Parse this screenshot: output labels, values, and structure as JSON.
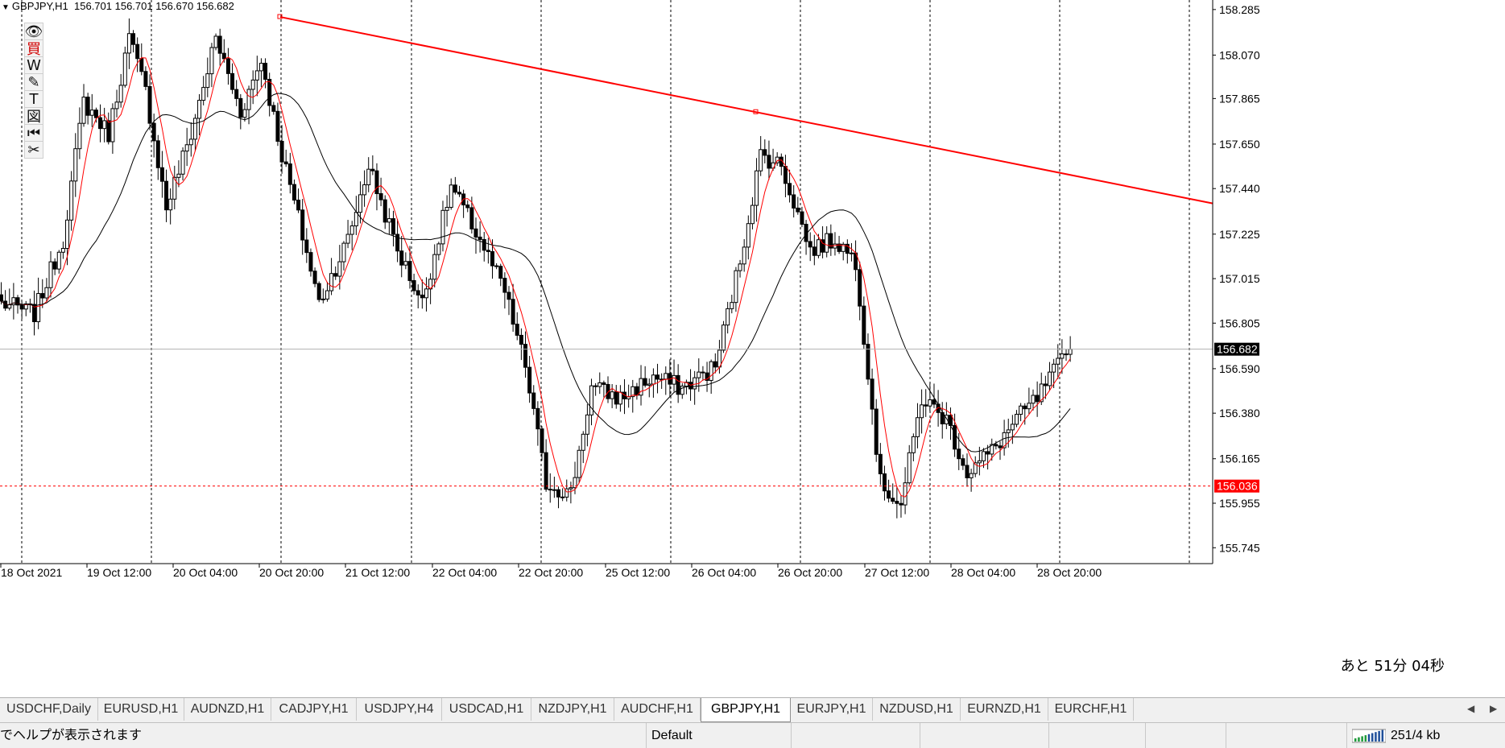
{
  "header": {
    "symbol": "GBPJPY,H1",
    "ohlc": "156.701 156.701 156.670 156.682"
  },
  "toolbar_icons": [
    "eye-icon",
    "buy-kanji-icon",
    "w-icon",
    "pencil-icon",
    "text-tool-icon",
    "box-kanji-icon",
    "rewind-icon",
    "scissors-icon"
  ],
  "toolbar_glyphs": [
    "👁",
    "買",
    "W",
    "✎",
    "T",
    "図",
    "⏮",
    "✂"
  ],
  "countdown": "あと 51分 04秒",
  "colors": {
    "candle": "#000000",
    "ma_fast": "#ff0000",
    "ma_slow": "#000000",
    "trendline": "#ff0000",
    "hline": "#ff0000",
    "current_price_bg": "#000000",
    "alert_price_bg": "#ff0000"
  },
  "chart_data": {
    "type": "candlestick",
    "symbol": "GBPJPY",
    "timeframe": "H1",
    "y_ticks": [
      "158.285",
      "158.070",
      "157.865",
      "157.650",
      "157.440",
      "157.225",
      "157.015",
      "156.805",
      "156.590",
      "156.380",
      "156.165",
      "155.955",
      "155.745"
    ],
    "ylim": [
      155.67,
      158.33
    ],
    "x_labels": [
      "18 Oct 2021",
      "19 Oct 12:00",
      "20 Oct 04:00",
      "20 Oct 20:00",
      "21 Oct 12:00",
      "22 Oct 04:00",
      "22 Oct 20:00",
      "25 Oct 12:00",
      "26 Oct 04:00",
      "26 Oct 20:00",
      "27 Oct 12:00",
      "28 Oct 04:00",
      "28 Oct 20:00"
    ],
    "current_price": "156.682",
    "alert_price": "156.036",
    "trendline": {
      "start_price": 158.25,
      "end_price": 157.37
    },
    "anchors": [
      [
        0,
        156.9
      ],
      [
        8,
        156.85
      ],
      [
        15,
        157.2
      ],
      [
        20,
        157.85
      ],
      [
        26,
        157.7
      ],
      [
        31,
        158.15
      ],
      [
        35,
        157.9
      ],
      [
        40,
        157.35
      ],
      [
        46,
        157.7
      ],
      [
        52,
        158.15
      ],
      [
        58,
        157.8
      ],
      [
        63,
        158.05
      ],
      [
        68,
        157.6
      ],
      [
        72,
        157.3
      ],
      [
        77,
        156.9
      ],
      [
        84,
        157.2
      ],
      [
        89,
        157.55
      ],
      [
        96,
        157.15
      ],
      [
        102,
        156.9
      ],
      [
        109,
        157.45
      ],
      [
        116,
        157.2
      ],
      [
        122,
        156.95
      ],
      [
        127,
        156.6
      ],
      [
        132,
        156.05
      ],
      [
        138,
        156.0
      ],
      [
        143,
        156.5
      ],
      [
        150,
        156.45
      ],
      [
        158,
        156.55
      ],
      [
        165,
        156.5
      ],
      [
        173,
        156.6
      ],
      [
        179,
        157.1
      ],
      [
        184,
        157.6
      ],
      [
        189,
        157.55
      ],
      [
        196,
        157.15
      ],
      [
        202,
        157.2
      ],
      [
        207,
        157.1
      ],
      [
        213,
        156.05
      ],
      [
        218,
        155.95
      ],
      [
        223,
        156.45
      ],
      [
        229,
        156.35
      ],
      [
        234,
        156.1
      ],
      [
        240,
        156.2
      ],
      [
        246,
        156.35
      ],
      [
        251,
        156.45
      ],
      [
        256,
        156.6
      ],
      [
        259,
        156.68
      ]
    ]
  },
  "tabs": [
    "USDCHF,Daily",
    "EURUSD,H1",
    "AUDNZD,H1",
    "CADJPY,H1",
    "USDJPY,H4",
    "USDCAD,H1",
    "NZDJPY,H1",
    "AUDCHF,H1",
    "GBPJPY,H1",
    "EURJPY,H1",
    "NZDUSD,H1",
    "EURNZD,H1",
    "EURCHF,H1"
  ],
  "active_tab": "GBPJPY,H1",
  "statusbar": {
    "help": "でヘルプが表示されます",
    "profile": "Default",
    "traffic": "251/4 kb"
  }
}
